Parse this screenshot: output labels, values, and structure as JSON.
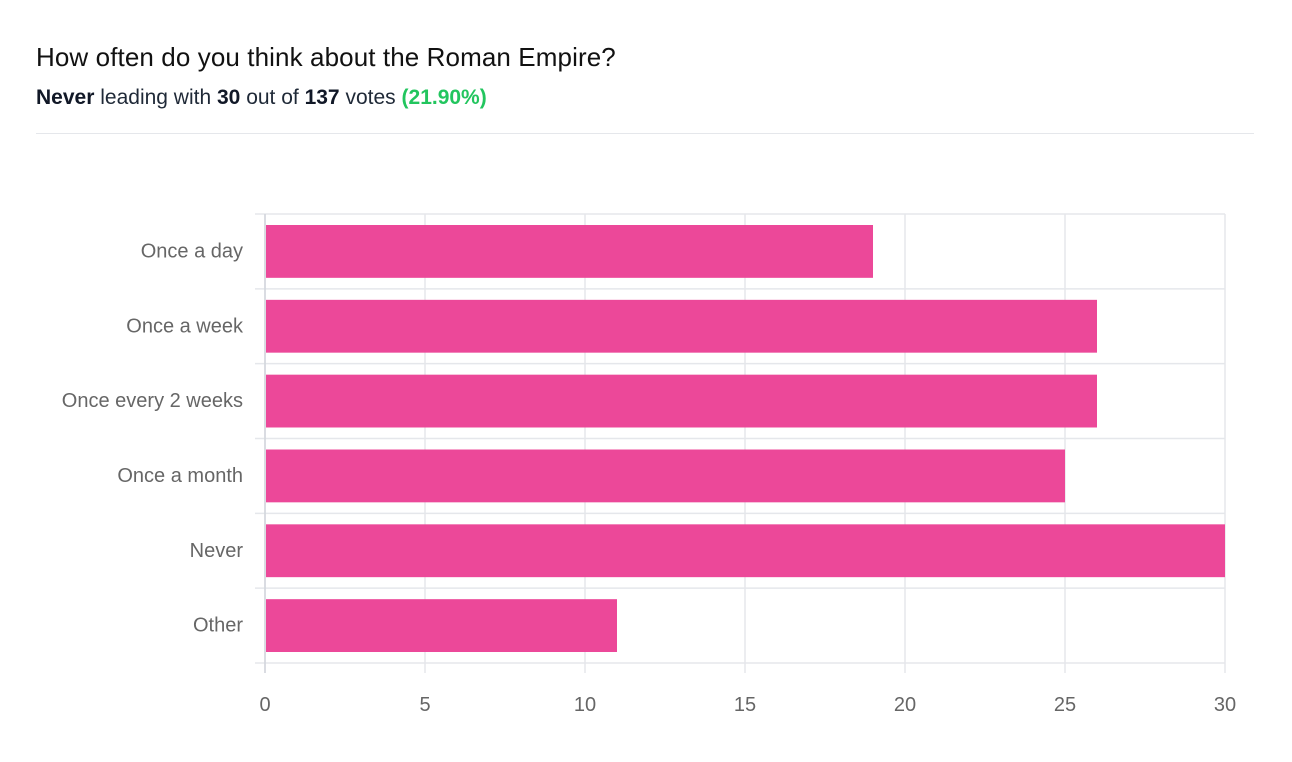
{
  "poll": {
    "title": "How often do you think about the Roman Empire?",
    "leader": "Never",
    "leading_text": "leading with",
    "leader_votes": "30",
    "out_of_text": "out of",
    "total_votes": "137",
    "votes_text": "votes",
    "leader_pct": "(21.90%)"
  },
  "colors": {
    "bar": "#ec4899",
    "grid": "#e5e7eb",
    "text": "#666666",
    "accent_green": "#22c55e"
  },
  "chart_data": {
    "type": "bar",
    "orientation": "horizontal",
    "categories": [
      "Once a day",
      "Once a week",
      "Once every 2 weeks",
      "Once a month",
      "Never",
      "Other"
    ],
    "values": [
      19,
      26,
      26,
      25,
      30,
      11
    ],
    "xlim": [
      0,
      30
    ],
    "xticks": [
      0,
      5,
      10,
      15,
      20,
      25,
      30
    ],
    "title": "",
    "xlabel": "",
    "ylabel": "",
    "grid": true,
    "legend": "none"
  }
}
